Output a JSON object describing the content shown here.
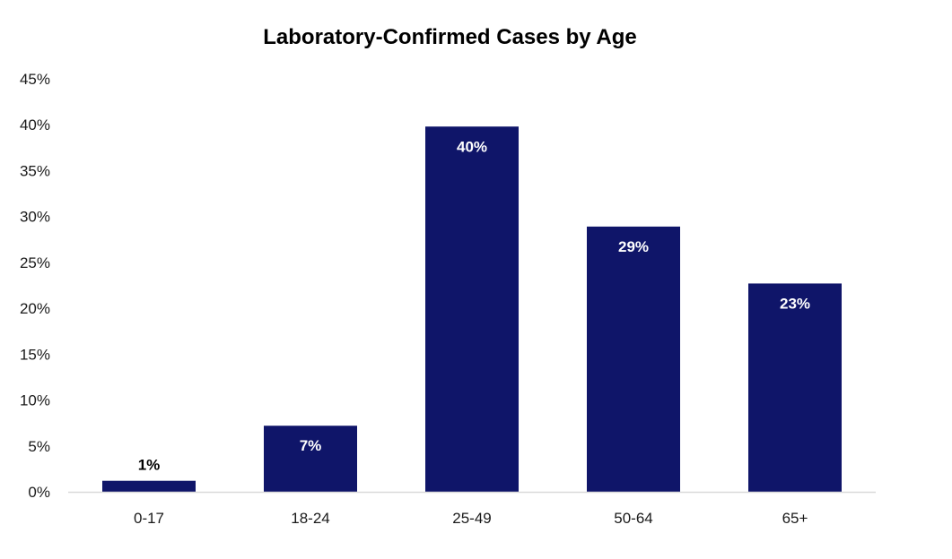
{
  "chart_data": {
    "type": "bar",
    "title": "Laboratory-Confirmed Cases by Age",
    "xlabel": "",
    "ylabel": "",
    "categories": [
      "0-17",
      "18-24",
      "25-49",
      "50-64",
      "65+"
    ],
    "values": [
      1.2,
      7.2,
      39.8,
      28.9,
      22.7
    ],
    "data_labels": [
      "1%",
      "7%",
      "40%",
      "29%",
      "23%"
    ],
    "y_ticks": [
      "0%",
      "5%",
      "10%",
      "15%",
      "20%",
      "25%",
      "30%",
      "35%",
      "40%",
      "45%"
    ],
    "ylim": [
      0,
      45
    ],
    "grid": false,
    "legend": "none",
    "colors": {
      "bar": "#0F1569",
      "label_inside": "#FFFFFF",
      "label_outside": "#000000",
      "axis_line": "#D9D9D9"
    }
  }
}
